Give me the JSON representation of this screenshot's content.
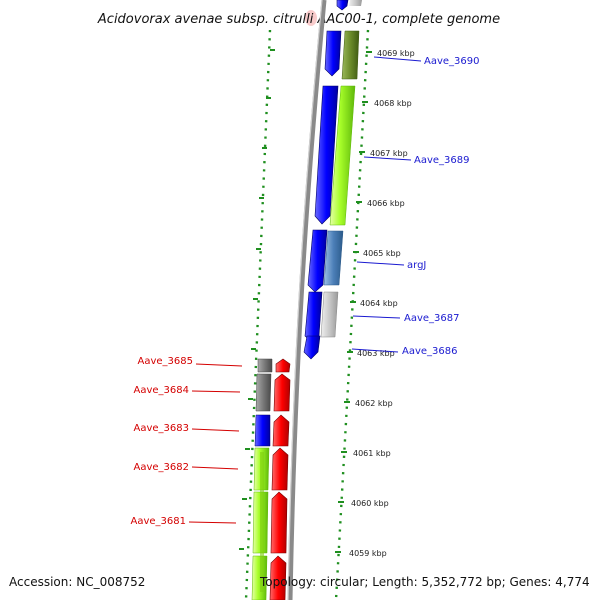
{
  "title": "Acidovorax avenae subsp. citrulli AAC00-1, complete genome",
  "footer": {
    "accession": "Accession: NC_008752",
    "topology": "Topology: circular; Length: 5,352,772 bp; Genes: 4,774"
  },
  "colors": {
    "forward_gene": "#ff0000",
    "reverse_gene": "#0000ff",
    "cds_lime": "#9bff1e",
    "cds_olive": "#6b8b2a",
    "cds_steel": "#4c7fb8",
    "cds_gray": "#777777",
    "cds_lightgray": "#c8c8c8",
    "backbone": "#888888",
    "tick_green": "#1f8f1f",
    "label_red": "#d40000",
    "label_blue": "#1a1ad0"
  },
  "kbp_ticks": [
    "4069 kbp",
    "4068 kbp",
    "4067 kbp",
    "4066 kbp",
    "4065 kbp",
    "4064 kbp",
    "4063 kbp",
    "4062 kbp",
    "4061 kbp",
    "4060 kbp",
    "4059 kbp"
  ],
  "labels_forward": [
    "Aave_3685",
    "Aave_3684",
    "Aave_3683",
    "Aave_3682",
    "Aave_3681"
  ],
  "labels_reverse": [
    "Aave_3690",
    "Aave_3689",
    "argJ",
    "Aave_3687",
    "Aave_3686"
  ]
}
